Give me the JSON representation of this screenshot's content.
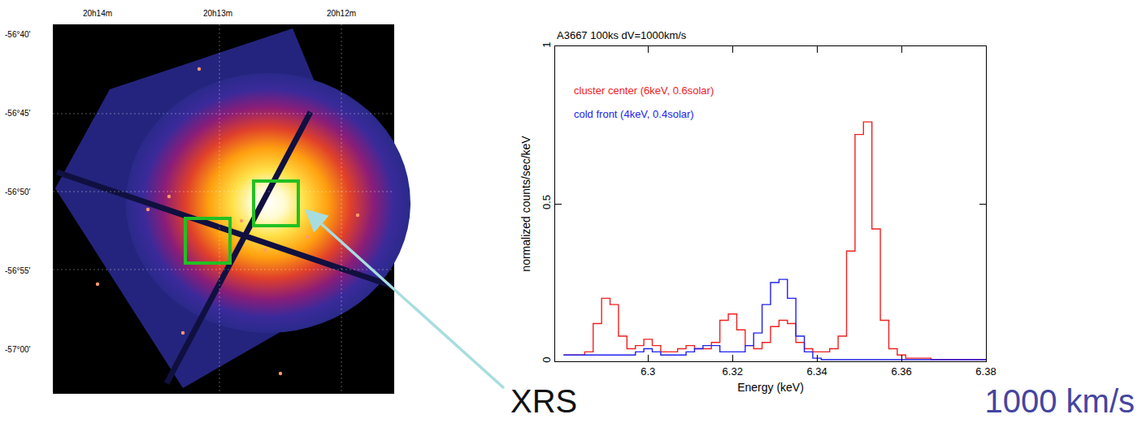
{
  "chart_data": {
    "type": "line",
    "title": "A3667 100ks dV=1000km/s",
    "x_label": "Energy (keV)",
    "y_label": "normalized counts/sec/keV",
    "x": [
      6.28,
      6.282,
      6.284,
      6.286,
      6.288,
      6.29,
      6.292,
      6.294,
      6.296,
      6.298,
      6.3,
      6.302,
      6.304,
      6.306,
      6.308,
      6.31,
      6.312,
      6.314,
      6.316,
      6.318,
      6.32,
      6.322,
      6.324,
      6.326,
      6.328,
      6.33,
      6.332,
      6.334,
      6.336,
      6.338,
      6.34,
      6.342,
      6.344,
      6.346,
      6.348,
      6.35,
      6.352,
      6.354,
      6.356,
      6.358,
      6.36,
      6.362,
      6.364,
      6.366,
      6.368,
      6.37,
      6.372,
      6.374,
      6.376,
      6.378,
      6.38
    ],
    "series": [
      {
        "name": "cluster center (6keV, 0.6solar)",
        "color": "#ee2222",
        "values": [
          0.02,
          0.02,
          0.02,
          0.03,
          0.12,
          0.2,
          0.18,
          0.08,
          0.04,
          0.05,
          0.07,
          0.05,
          0.03,
          0.03,
          0.04,
          0.05,
          0.04,
          0.04,
          0.06,
          0.13,
          0.15,
          0.1,
          0.05,
          0.04,
          0.06,
          0.11,
          0.13,
          0.12,
          0.06,
          0.04,
          0.03,
          0.03,
          0.04,
          0.08,
          0.35,
          0.72,
          0.76,
          0.42,
          0.13,
          0.04,
          0.02,
          0.01,
          0.01,
          0.01,
          0.005,
          0.005,
          0.005,
          0.005,
          0.005,
          0.005,
          0.005
        ]
      },
      {
        "name": "cold front (4keV, 0.4solar)",
        "color": "#2222ee",
        "values": [
          0.02,
          0.02,
          0.02,
          0.02,
          0.02,
          0.02,
          0.02,
          0.02,
          0.02,
          0.03,
          0.04,
          0.03,
          0.02,
          0.02,
          0.02,
          0.03,
          0.04,
          0.05,
          0.05,
          0.03,
          0.03,
          0.03,
          0.05,
          0.09,
          0.18,
          0.25,
          0.26,
          0.2,
          0.08,
          0.03,
          0.01,
          0.005,
          0.005,
          0.005,
          0.005,
          0.005,
          0.005,
          0.005,
          0.005,
          0.005,
          0.005,
          0.005,
          0.005,
          0.005,
          0.005,
          0.005,
          0.005,
          0.005,
          0.005,
          0.005,
          0.005
        ]
      }
    ],
    "xlim": [
      6.278,
      6.38
    ],
    "xticks": [
      6.3,
      6.32,
      6.34,
      6.36,
      6.38
    ],
    "ylim": [
      0,
      1
    ],
    "yticks": [
      0,
      0.5,
      1
    ],
    "grid": false,
    "legend": "upper left",
    "line_style": "step"
  },
  "image_panel": {
    "ra_ticks": [
      "20h14m",
      "20h13m",
      "20h12m"
    ],
    "dec_ticks": [
      "-56°40'",
      "-56°45'",
      "-56°50'",
      "-56°55'",
      "-57°00'"
    ]
  },
  "callouts": {
    "instrument": "XRS",
    "velocity": "1000 km/s"
  }
}
